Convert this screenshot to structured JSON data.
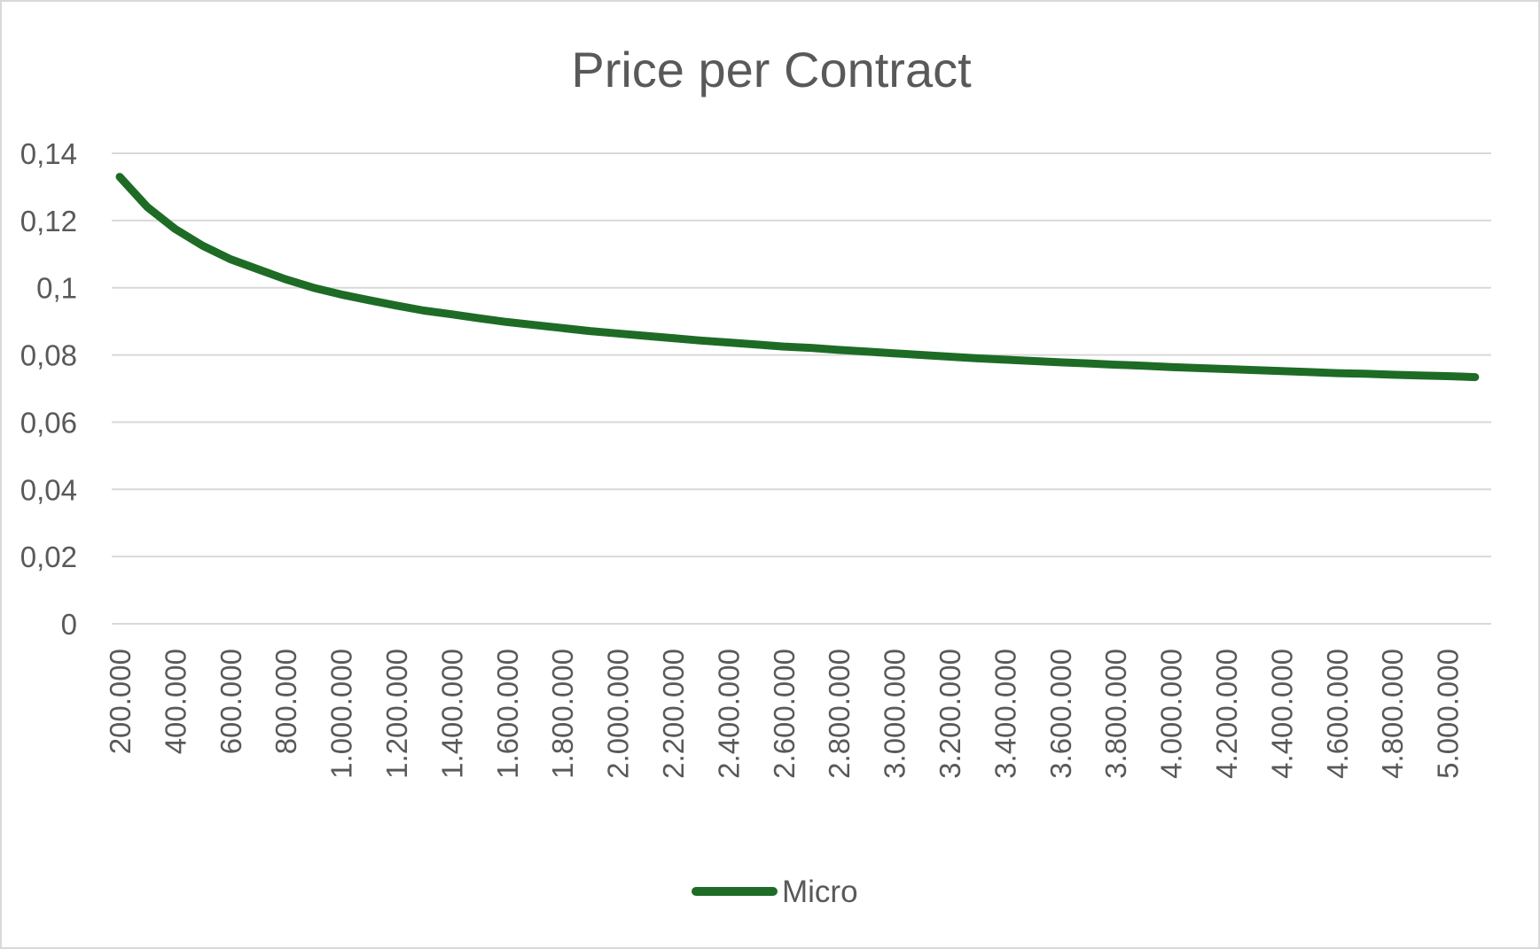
{
  "chart_data": {
    "type": "line",
    "title": "Price per Contract",
    "xlabel": "",
    "ylabel": "",
    "grid": true,
    "legend_position": "bottom",
    "ylim": [
      0,
      0.14
    ],
    "y_ticks": [
      "0",
      "0,02",
      "0,04",
      "0,06",
      "0,08",
      "0,1",
      "0,12",
      "0,14"
    ],
    "x_tick_labels": [
      "200.000",
      "400.000",
      "600.000",
      "800.000",
      "1.000.000",
      "1.200.000",
      "1.400.000",
      "1.600.000",
      "1.800.000",
      "2.000.000",
      "2.200.000",
      "2.400.000",
      "2.600.000",
      "2.800.000",
      "3.000.000",
      "3.200.000",
      "3.400.000",
      "3.600.000",
      "3.800.000",
      "4.000.000",
      "4.200.000",
      "4.400.000",
      "4.600.000",
      "4.800.000",
      "5.000.000"
    ],
    "colors": {
      "series": "#1e6b26",
      "grid": "#d9d9d9",
      "text": "#595959",
      "border": "#d9d9d9"
    },
    "series": [
      {
        "name": "Micro",
        "x": [
          200000,
          300000,
          400000,
          500000,
          600000,
          700000,
          800000,
          900000,
          1000000,
          1100000,
          1200000,
          1300000,
          1400000,
          1500000,
          1600000,
          1700000,
          1800000,
          1900000,
          2000000,
          2100000,
          2200000,
          2300000,
          2400000,
          2500000,
          2600000,
          2700000,
          2800000,
          2900000,
          3000000,
          3100000,
          3200000,
          3300000,
          3400000,
          3500000,
          3600000,
          3700000,
          3800000,
          3900000,
          4000000,
          4100000,
          4200000,
          4300000,
          4400000,
          4500000,
          4600000,
          4700000,
          4800000,
          4900000,
          5000000,
          5100000
        ],
        "values": [
          0.133,
          0.124,
          0.1175,
          0.1125,
          0.1085,
          0.1055,
          0.1025,
          0.1,
          0.098,
          0.0963,
          0.0947,
          0.0932,
          0.0921,
          0.0909,
          0.0898,
          0.0889,
          0.088,
          0.0871,
          0.0864,
          0.0857,
          0.085,
          0.0843,
          0.0837,
          0.0831,
          0.0825,
          0.0821,
          0.0815,
          0.081,
          0.0805,
          0.08,
          0.0795,
          0.079,
          0.0786,
          0.0782,
          0.0778,
          0.0775,
          0.0771,
          0.0768,
          0.0764,
          0.0761,
          0.0758,
          0.0755,
          0.0752,
          0.0749,
          0.0746,
          0.0744,
          0.0741,
          0.0739,
          0.0737,
          0.0734
        ]
      }
    ]
  }
}
